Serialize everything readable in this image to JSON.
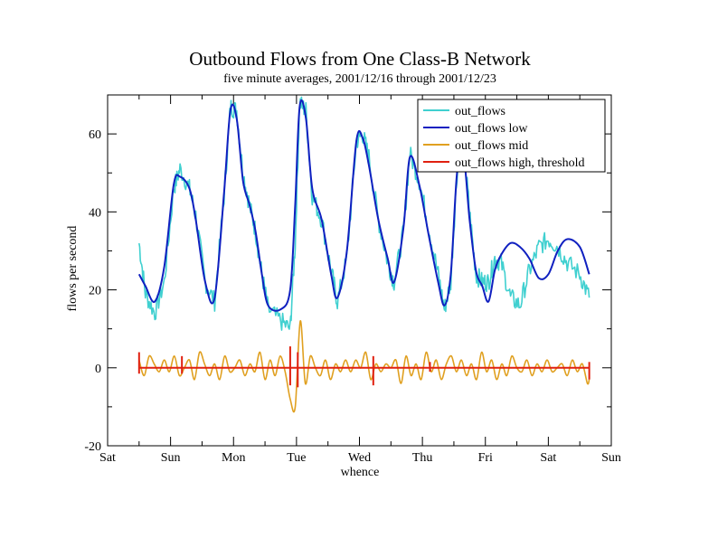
{
  "chart_data": {
    "type": "line",
    "title": "Outbound Flows from One Class-B Network",
    "subtitle": "five minute averages, 2001/12/16 through 2001/12/23",
    "xlabel": "whence",
    "ylabel": "flows per second",
    "xlim": [
      0,
      8
    ],
    "ylim": [
      -20,
      70
    ],
    "x_ticks": [
      {
        "x": 0,
        "label": "Sat"
      },
      {
        "x": 1,
        "label": "Sun"
      },
      {
        "x": 2,
        "label": "Mon"
      },
      {
        "x": 3,
        "label": "Tue"
      },
      {
        "x": 4,
        "label": "Wed"
      },
      {
        "x": 5,
        "label": "Thu"
      },
      {
        "x": 6,
        "label": "Fri"
      },
      {
        "x": 7,
        "label": "Sat"
      },
      {
        "x": 8,
        "label": "Sun"
      }
    ],
    "y_ticks": [
      -20,
      0,
      20,
      40,
      60
    ],
    "y_minor_ticks": [
      -10,
      10,
      30,
      50
    ],
    "legend_position": "top-right",
    "series": [
      {
        "name": "out_flows",
        "color": "#40d0d0",
        "noise": 2.5,
        "x": [
          0.5,
          0.6,
          0.75,
          0.9,
          1.05,
          1.15,
          1.3,
          1.4,
          1.55,
          1.7,
          1.85,
          1.95,
          2.05,
          2.15,
          2.25,
          2.35,
          2.45,
          2.55,
          2.75,
          2.9,
          2.98,
          3.05,
          3.15,
          3.25,
          3.4,
          3.55,
          3.65,
          3.8,
          3.95,
          4.05,
          4.15,
          4.3,
          4.45,
          4.55,
          4.7,
          4.8,
          4.95,
          5.1,
          5.25,
          5.35,
          5.45,
          5.55,
          5.65,
          5.75,
          5.85,
          5.95,
          6.05,
          6.15,
          6.25,
          6.4,
          6.55,
          6.7,
          6.85,
          7.0,
          7.15,
          7.3,
          7.5,
          7.65
        ],
        "y": [
          32,
          19,
          14,
          22,
          46,
          51,
          46,
          39,
          22,
          17,
          44,
          67,
          66,
          50,
          42,
          35,
          24,
          15,
          12,
          10,
          32,
          68,
          66,
          44,
          38,
          25,
          17,
          28,
          58,
          60,
          54,
          38,
          27,
          22,
          35,
          55,
          48,
          36,
          24,
          15,
          22,
          50,
          57,
          40,
          24,
          22,
          22,
          28,
          27,
          18,
          16,
          25,
          31,
          33,
          31,
          27,
          24,
          18
        ]
      },
      {
        "name": "out_flows low",
        "color": "#1020c0",
        "noise": 0,
        "x": [
          0.5,
          0.6,
          0.75,
          0.9,
          1.05,
          1.15,
          1.3,
          1.4,
          1.55,
          1.7,
          1.85,
          1.95,
          2.05,
          2.15,
          2.25,
          2.35,
          2.45,
          2.55,
          2.75,
          2.9,
          2.98,
          3.05,
          3.15,
          3.25,
          3.4,
          3.55,
          3.65,
          3.8,
          3.95,
          4.05,
          4.15,
          4.3,
          4.45,
          4.55,
          4.7,
          4.8,
          4.95,
          5.1,
          5.25,
          5.35,
          5.45,
          5.55,
          5.65,
          5.75,
          5.85,
          5.95,
          6.05,
          6.15,
          6.25,
          6.4,
          6.55,
          6.7,
          6.85,
          7.0,
          7.15,
          7.3,
          7.5,
          7.65
        ],
        "y": [
          24,
          21,
          17,
          26,
          47,
          49,
          46,
          38,
          22,
          18,
          45,
          66,
          64,
          48,
          42,
          35,
          24,
          16,
          15,
          20,
          42,
          67,
          64,
          46,
          38,
          24,
          18,
          30,
          58,
          59,
          52,
          38,
          28,
          22,
          36,
          54,
          47,
          34,
          22,
          16,
          24,
          50,
          55,
          38,
          25,
          21,
          17,
          25,
          29,
          32,
          31,
          28,
          23,
          24,
          30,
          33,
          31,
          24
        ]
      },
      {
        "name": "out_flows mid",
        "color": "#e0a020",
        "noise": 0,
        "x": [
          0.5,
          0.58,
          0.66,
          0.74,
          0.82,
          0.9,
          0.98,
          1.06,
          1.14,
          1.22,
          1.3,
          1.38,
          1.46,
          1.54,
          1.62,
          1.7,
          1.78,
          1.86,
          1.94,
          2.02,
          2.1,
          2.18,
          2.26,
          2.34,
          2.42,
          2.5,
          2.58,
          2.66,
          2.74,
          2.82,
          2.9,
          2.98,
          3.06,
          3.14,
          3.22,
          3.3,
          3.38,
          3.46,
          3.54,
          3.62,
          3.7,
          3.78,
          3.86,
          3.94,
          4.02,
          4.1,
          4.18,
          4.26,
          4.34,
          4.42,
          4.5,
          4.58,
          4.66,
          4.74,
          4.82,
          4.9,
          4.98,
          5.06,
          5.14,
          5.22,
          5.3,
          5.38,
          5.46,
          5.54,
          5.62,
          5.7,
          5.78,
          5.86,
          5.94,
          6.02,
          6.1,
          6.18,
          6.26,
          6.34,
          6.42,
          6.5,
          6.58,
          6.66,
          6.74,
          6.82,
          6.9,
          6.98,
          7.06,
          7.14,
          7.22,
          7.3,
          7.38,
          7.46,
          7.54,
          7.62,
          7.65
        ],
        "y": [
          2,
          -2,
          3,
          1,
          -1,
          2,
          -1,
          3,
          -2,
          0,
          2,
          -3,
          4,
          1,
          -2,
          1,
          -3,
          3,
          -1,
          0,
          2,
          -2,
          1,
          -1,
          4,
          -3,
          2,
          -2,
          3,
          -1,
          -8,
          -10,
          12,
          -4,
          3,
          0,
          -2,
          2,
          -3,
          1,
          -1,
          2,
          -1,
          2,
          0,
          4,
          -3,
          1,
          -1,
          1,
          0,
          2,
          -4,
          3,
          -2,
          1,
          -3,
          4,
          -1,
          2,
          -3,
          1,
          3,
          -1,
          2,
          -2,
          1,
          -3,
          4,
          -1,
          2,
          -3,
          1,
          -2,
          3,
          0,
          -1,
          2,
          -2,
          1,
          -1,
          2,
          -1,
          0,
          1,
          -2,
          2,
          -1,
          1,
          -4,
          -3
        ]
      },
      {
        "name": "out_flows high, threshold",
        "color": "#e02010",
        "noise": 0,
        "x": [
          0.5,
          7.65
        ],
        "y": [
          0,
          0
        ],
        "spikes": [
          {
            "x": 0.5,
            "y0": -1.5,
            "y1": 4
          },
          {
            "x": 1.18,
            "y0": -1.5,
            "y1": 3
          },
          {
            "x": 2.9,
            "y0": -4.5,
            "y1": 5.5
          },
          {
            "x": 3.02,
            "y0": -5,
            "y1": 4
          },
          {
            "x": 4.22,
            "y0": -4.5,
            "y1": 3
          },
          {
            "x": 5.12,
            "y0": -1,
            "y1": 1.5
          },
          {
            "x": 7.65,
            "y0": -3,
            "y1": 1.5
          }
        ]
      }
    ]
  }
}
